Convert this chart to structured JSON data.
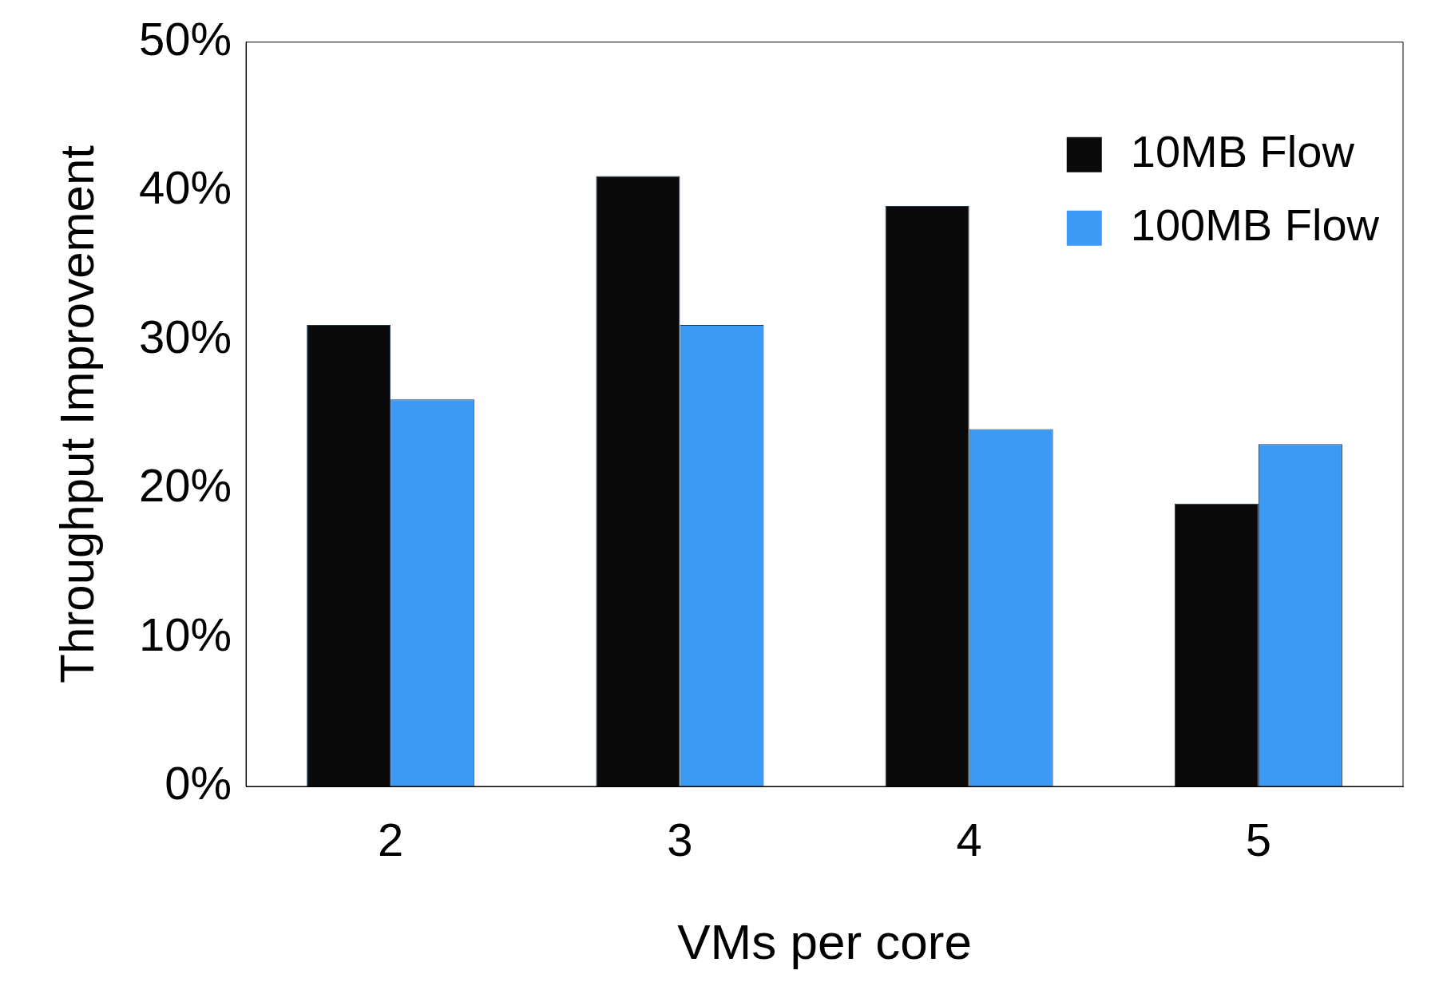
{
  "chart_data": {
    "type": "bar",
    "xlabel": "VMs per core",
    "ylabel": "Throughput Improvement",
    "categories": [
      "2",
      "3",
      "4",
      "5"
    ],
    "series": [
      {
        "name": "10MB Flow",
        "color": "#0a0a0a",
        "values": [
          31,
          41,
          39,
          19
        ]
      },
      {
        "name": "100MB Flow",
        "color": "#3a9af5",
        "values": [
          26,
          31,
          24,
          23
        ]
      }
    ],
    "ylim": [
      0,
      50
    ],
    "yticks": [
      {
        "value": 0,
        "label": "0%"
      },
      {
        "value": 10,
        "label": "10%"
      },
      {
        "value": 20,
        "label": "20%"
      },
      {
        "value": 30,
        "label": "30%"
      },
      {
        "value": 40,
        "label": "40%"
      },
      {
        "value": 50,
        "label": "50%"
      }
    ],
    "legend": "top right",
    "grid": false
  }
}
